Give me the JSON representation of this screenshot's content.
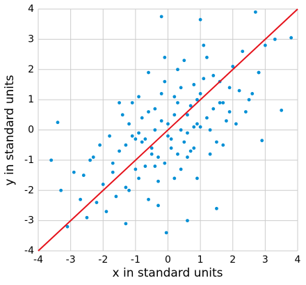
{
  "chart_data": {
    "type": "scatter",
    "xlabel": "x in standard units",
    "ylabel": "y in standard units",
    "xlim": [
      -4,
      4
    ],
    "ylim": [
      -4,
      4
    ],
    "xticks": [
      -4,
      -3,
      -2,
      -1,
      0,
      1,
      2,
      3,
      4
    ],
    "yticks": [
      -4,
      -3,
      -2,
      -1,
      0,
      1,
      2,
      3,
      4
    ],
    "grid": true,
    "series": [
      {
        "type": "scatter",
        "color": "#008fd5",
        "x": [
          -0.5,
          0.3,
          1.2,
          -1.1,
          0.8,
          -0.2,
          1.6,
          -1.7,
          0.1,
          2.2,
          -0.9,
          0.6,
          -2.3,
          1.4,
          -0.4,
          0.9,
          -1.3,
          0.2,
          1.9,
          -0.7,
          0.0,
          -0.6,
          1.1,
          -1.5,
          0.5,
          2.5,
          -2.0,
          0.7,
          -0.1,
          1.3,
          -1.0,
          0.4,
          -2.6,
          1.7,
          -0.3,
          0.8,
          -1.2,
          2.0,
          -0.8,
          0.2,
          -1.4,
          0.6,
          1.0,
          -0.3,
          2.8,
          -2.2,
          0.3,
          -0.7,
          1.5,
          -1.8,
          0.9,
          -0.1,
          1.8,
          -1.0,
          0.4,
          -2.9,
          2.3,
          -0.5,
          1.2,
          -1.6,
          0.1,
          -0.9,
          1.4,
          -0.2,
          0.7,
          -1.3,
          2.1,
          -0.6,
          1.0,
          -2.4,
          0.5,
          -0.4,
          1.6,
          -1.1,
          3.0,
          -0.8,
          0.2,
          1.9,
          -1.9,
          0.8,
          -0.1,
          0.4,
          -1.5,
          1.3,
          -0.6,
          2.4,
          -2.1,
          0.9,
          -0.3,
          1.1,
          -1.2,
          0.0,
          2.6,
          -2.7,
          0.6,
          -0.9,
          1.7,
          -0.4,
          0.3,
          -1.7,
          -0.2,
          2.7,
          1.0,
          3.8,
          3.5,
          -3.4,
          -3.6,
          -0.05,
          -3.1,
          2.9,
          3.3,
          -2.5,
          1.5,
          -3.3,
          2.8,
          -1.3,
          0.6
        ],
        "y": [
          -0.8,
          0.9,
          0.4,
          -0.2,
          1.5,
          0.3,
          0.9,
          -1.4,
          -0.6,
          1.3,
          -1.6,
          -0.1,
          -0.9,
          1.8,
          0.7,
          0.2,
          -0.5,
          1.1,
          0.6,
          -1.2,
          0.2,
          0.6,
          1.7,
          -0.7,
          -0.4,
          1.0,
          -1.8,
          0.8,
          -1.1,
          0.0,
          -0.3,
          1.4,
          -1.5,
          0.9,
          -0.9,
          -0.6,
          -2.0,
          2.1,
          0.4,
          0.5,
          0.5,
          -0.9,
          0.1,
          -1.7,
          1.9,
          -2.4,
          2.0,
          -0.3,
          -0.4,
          -0.2,
          1.0,
          1.6,
          0.3,
          -1.3,
          0.0,
          -1.4,
          2.6,
          -0.6,
          2.4,
          -2.2,
          -0.3,
          -0.1,
          0.7,
          1.2,
          -0.7,
          -1.9,
          0.2,
          -2.3,
          1.2,
          -1.0,
          2.3,
          -1.2,
          1.6,
          0.9,
          2.8,
          -0.4,
          -1.6,
          1.4,
          -2.7,
          0.1,
          2.4,
          -1.3,
          0.9,
          -0.8,
          1.9,
          0.6,
          -0.5,
          -1.6,
          -2.5,
          2.8,
          0.2,
          -0.2,
          1.2,
          -2.3,
          0.5,
          1.1,
          -0.5,
          0.0,
          -0.8,
          -1.1,
          3.75,
          3.9,
          3.65,
          3.05,
          0.65,
          0.25,
          -1.0,
          -3.4,
          -3.2,
          -0.35,
          3.0,
          -2.9,
          -2.6,
          -2.0,
          1.9,
          -3.1,
          -3.0
        ]
      },
      {
        "type": "line",
        "color": "#e5121b",
        "x": [
          -4,
          4
        ],
        "y": [
          -4,
          4
        ]
      }
    ]
  }
}
